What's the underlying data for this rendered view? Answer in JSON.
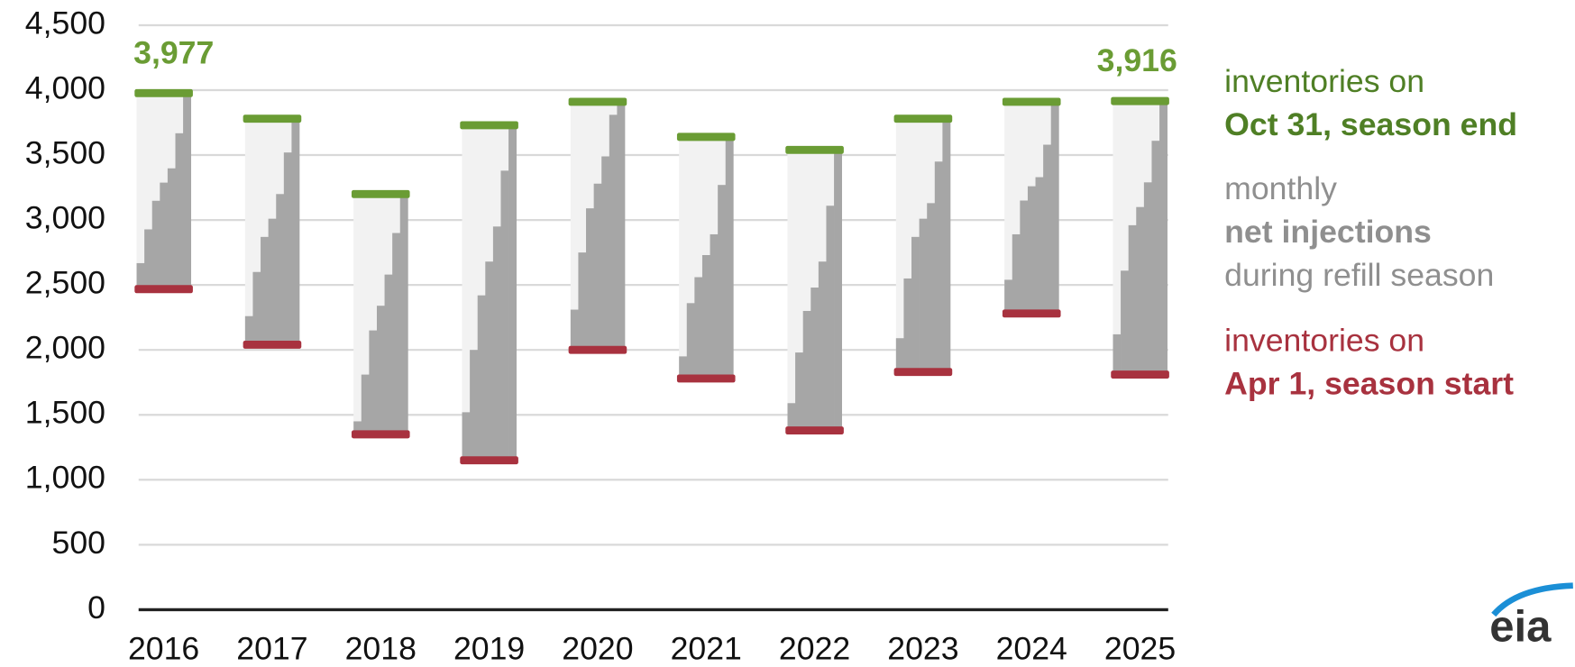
{
  "chart_data": {
    "type": "refill-season",
    "categories": [
      "2016",
      "2017",
      "2018",
      "2019",
      "2020",
      "2021",
      "2022",
      "2023",
      "2024",
      "2025"
    ],
    "series": [
      {
        "name": [
          "inventories on",
          "Oct 31, season end"
        ],
        "color": "#6a9c34",
        "values": [
          3977,
          3780,
          3200,
          3730,
          3910,
          3640,
          3540,
          3780,
          3910,
          3916
        ],
        "value_labels": [
          "3,977",
          null,
          null,
          null,
          null,
          null,
          null,
          null,
          null,
          "3,916"
        ]
      },
      {
        "name": [
          "monthly",
          "net injections",
          "during refill season"
        ],
        "color": "#a6a6a6",
        "background": "#f2f2f2",
        "values": [
          [
            200,
            260,
            220,
            140,
            110,
            270,
            308
          ],
          [
            220,
            340,
            270,
            140,
            190,
            320,
            260
          ],
          [
            100,
            360,
            340,
            190,
            240,
            320,
            300
          ],
          [
            370,
            480,
            420,
            260,
            270,
            430,
            350
          ],
          [
            310,
            440,
            340,
            190,
            210,
            320,
            100
          ],
          [
            170,
            410,
            200,
            170,
            160,
            380,
            370
          ],
          [
            210,
            390,
            320,
            180,
            200,
            430,
            430
          ],
          [
            260,
            460,
            320,
            140,
            120,
            320,
            330
          ],
          [
            260,
            350,
            260,
            110,
            70,
            250,
            330
          ],
          [
            310,
            490,
            350,
            140,
            190,
            320,
            306
          ]
        ]
      },
      {
        "name": [
          "inventories on",
          "Apr 1, season start"
        ],
        "color": "#a8323f",
        "values": [
          2468,
          2040,
          1350,
          1150,
          2000,
          1780,
          1380,
          1830,
          2280,
          1810
        ]
      }
    ],
    "ylim": [
      0,
      4500
    ],
    "yticks": [
      0,
      500,
      {
        "value": 1000,
        "label": "1,000"
      },
      {
        "value": 1500,
        "label": "1,500"
      },
      {
        "value": 2000,
        "label": "2,000"
      },
      {
        "value": 2500,
        "label": "2,500"
      },
      {
        "value": 3000,
        "label": "3,000"
      },
      {
        "value": 3500,
        "label": "3,500"
      },
      {
        "value": 4000,
        "label": "4,000"
      },
      {
        "value": 4500,
        "label": "4,500"
      }
    ],
    "grid": true,
    "logo": "eia"
  }
}
